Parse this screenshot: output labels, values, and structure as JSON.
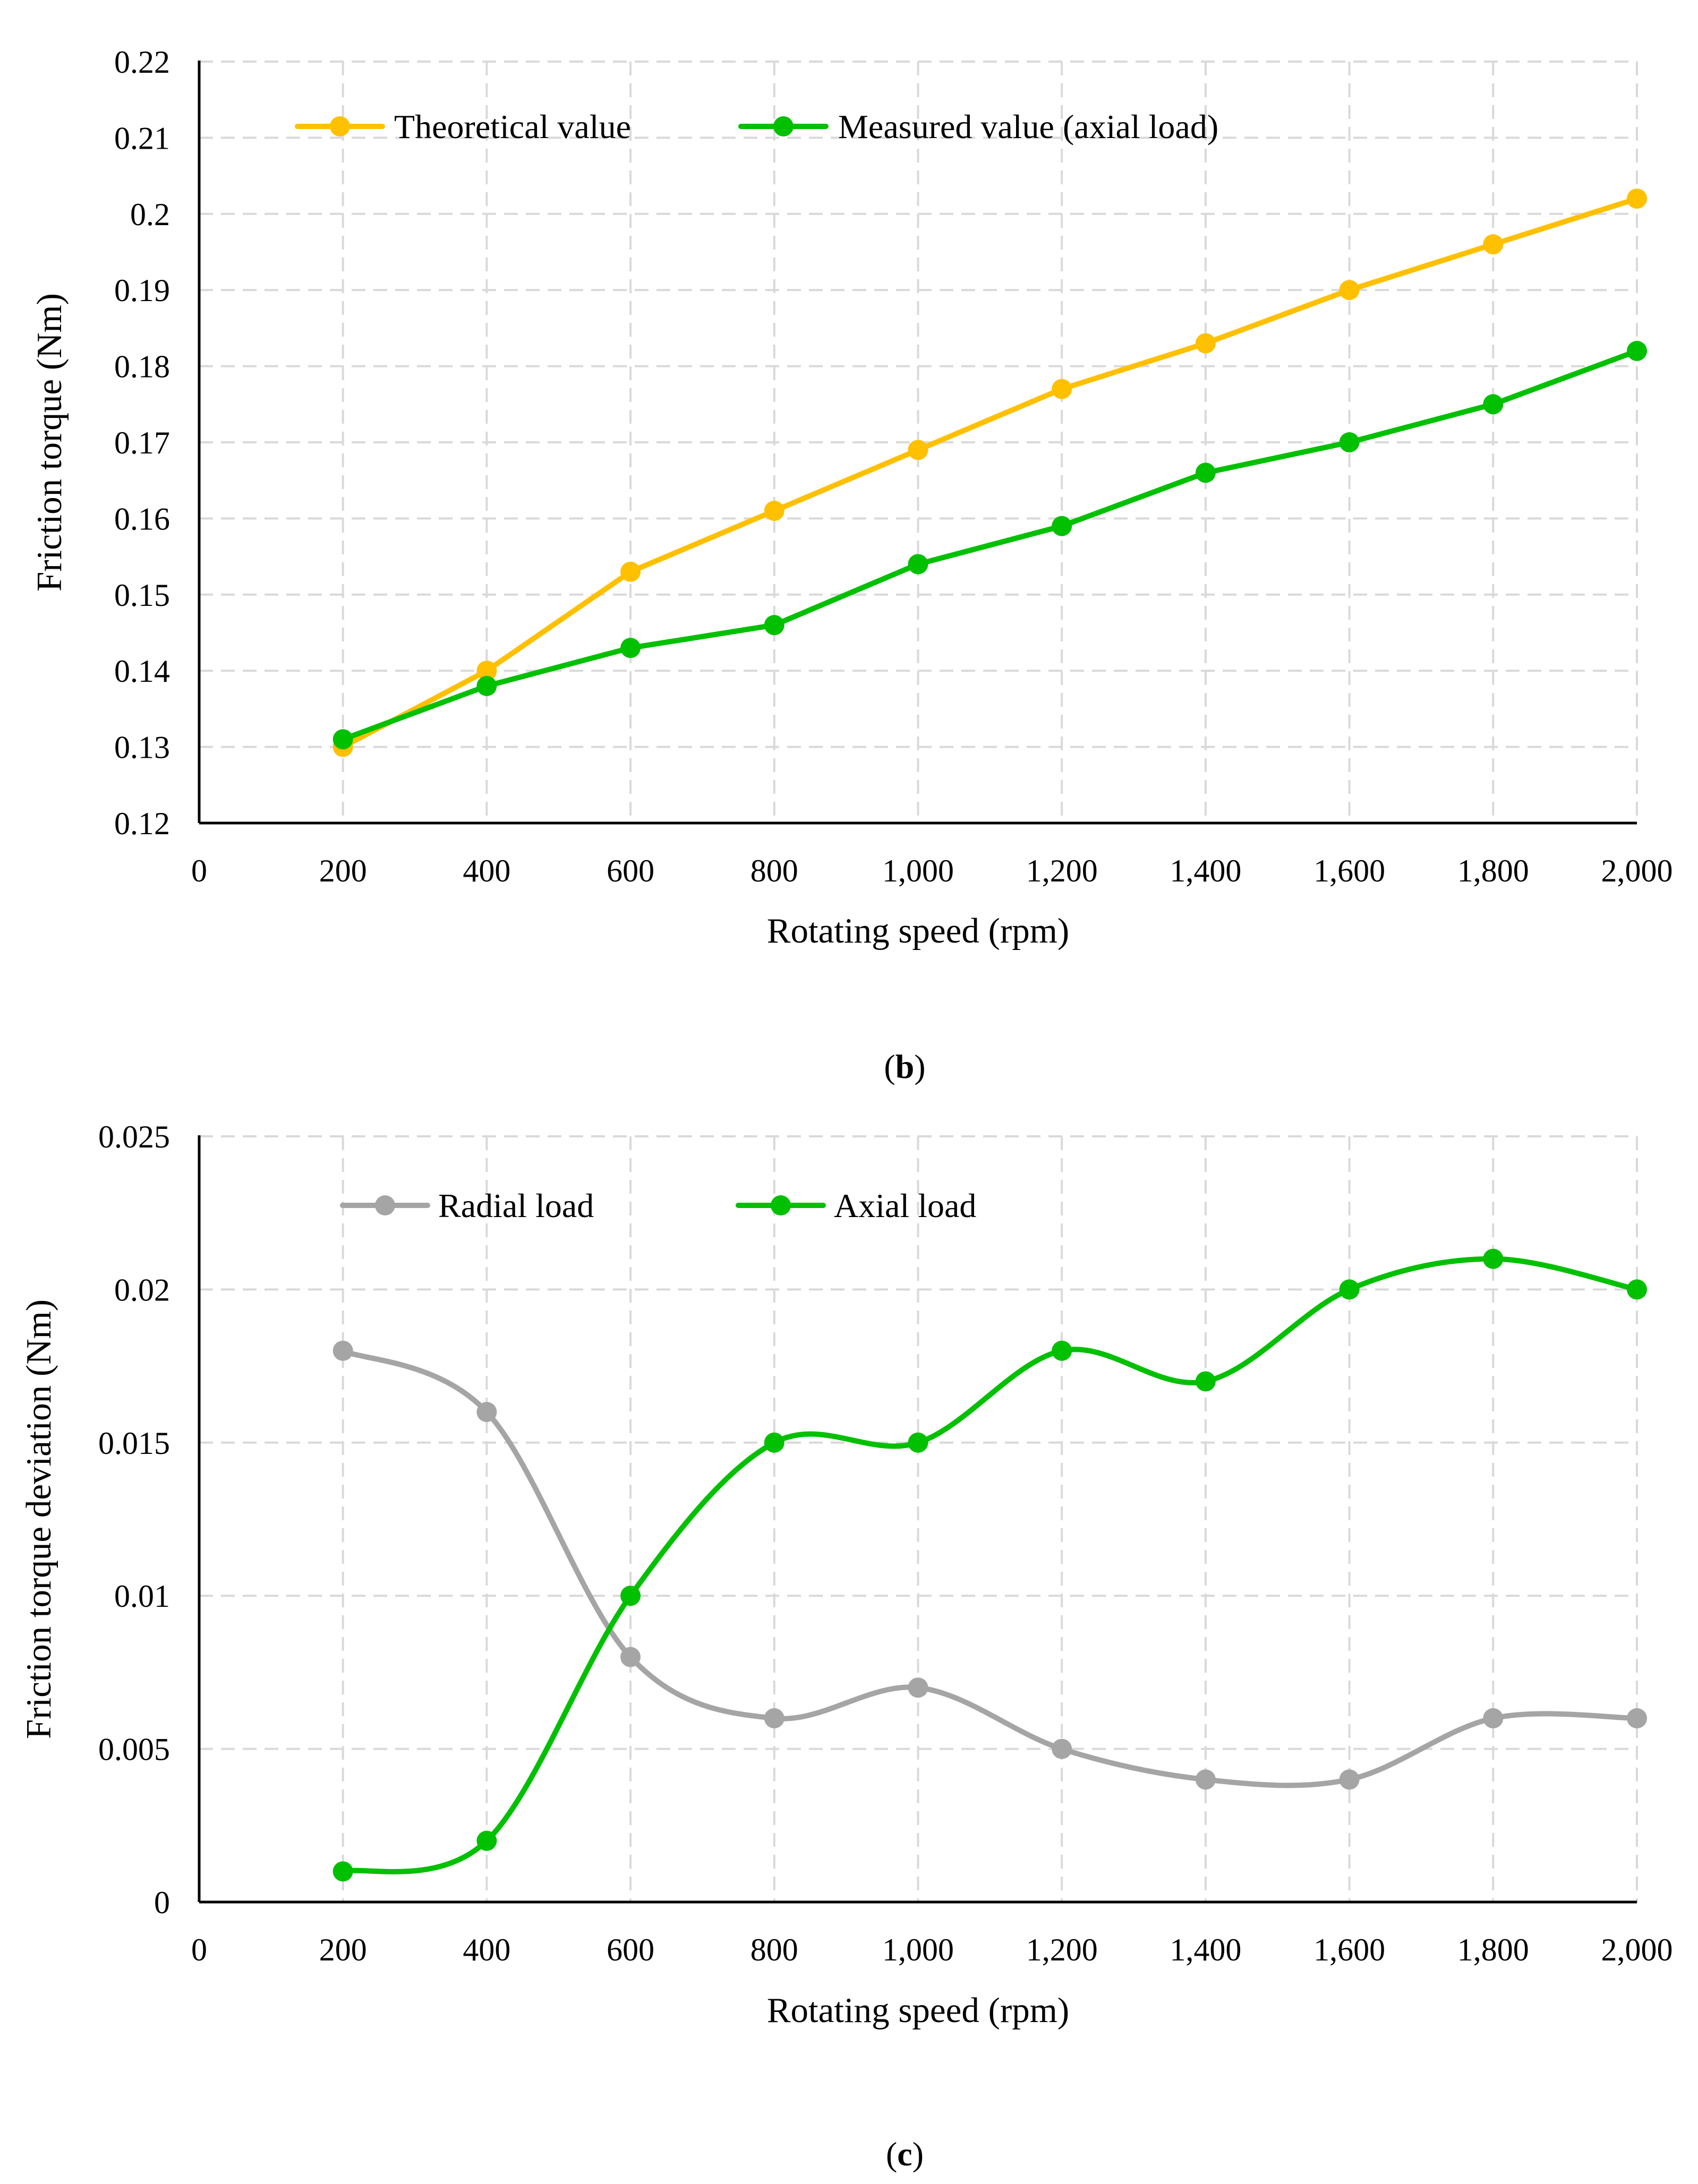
{
  "chart_data": [
    {
      "panel_label": "b",
      "type": "line",
      "xlabel": "Rotating speed (rpm)",
      "ylabel": "Friction torque (Nm)",
      "xlim": [
        0,
        2000
      ],
      "ylim": [
        0.12,
        0.22
      ],
      "x_ticks": [
        0,
        200,
        400,
        600,
        800,
        1000,
        1200,
        1400,
        1600,
        1800,
        2000
      ],
      "x_tick_labels": [
        "0",
        "200",
        "400",
        "600",
        "800",
        "1,000",
        "1,200",
        "1,400",
        "1,600",
        "1,800",
        "2,000"
      ],
      "y_ticks": [
        0.12,
        0.13,
        0.14,
        0.15,
        0.16,
        0.17,
        0.18,
        0.19,
        0.2,
        0.21,
        0.22
      ],
      "y_tick_labels": [
        "0.12",
        "0.13",
        "0.14",
        "0.15",
        "0.16",
        "0.17",
        "0.18",
        "0.19",
        "0.2",
        "0.21",
        "0.22"
      ],
      "grid": true,
      "legend_position": "top-left",
      "smooth": false,
      "x": [
        200,
        400,
        600,
        800,
        1000,
        1200,
        1400,
        1600,
        1800,
        2000
      ],
      "series": [
        {
          "name": "Theoretical value",
          "color": "#FFC000",
          "values": [
            0.13,
            0.14,
            0.153,
            0.161,
            0.169,
            0.177,
            0.183,
            0.19,
            0.196,
            0.202
          ]
        },
        {
          "name": "Measured value (axial load)",
          "color": "#00C000",
          "values": [
            0.131,
            0.138,
            0.143,
            0.146,
            0.154,
            0.159,
            0.166,
            0.17,
            0.175,
            0.182
          ]
        }
      ]
    },
    {
      "panel_label": "c",
      "type": "line",
      "xlabel": "Rotating speed (rpm)",
      "ylabel": "Friction torque deviation (Nm)",
      "xlim": [
        0,
        2000
      ],
      "ylim": [
        0,
        0.025
      ],
      "x_ticks": [
        0,
        200,
        400,
        600,
        800,
        1000,
        1200,
        1400,
        1600,
        1800,
        2000
      ],
      "x_tick_labels": [
        "0",
        "200",
        "400",
        "600",
        "800",
        "1,000",
        "1,200",
        "1,400",
        "1,600",
        "1,800",
        "2,000"
      ],
      "y_ticks": [
        0,
        0.005,
        0.01,
        0.015,
        0.02,
        0.025
      ],
      "y_tick_labels": [
        "0",
        "0.005",
        "0.01",
        "0.015",
        "0.02",
        "0.025"
      ],
      "grid": true,
      "legend_position": "top-left",
      "smooth": true,
      "x": [
        200,
        400,
        600,
        800,
        1000,
        1200,
        1400,
        1600,
        1800,
        2000
      ],
      "series": [
        {
          "name": "Radial load",
          "color": "#A5A5A5",
          "values": [
            0.018,
            0.016,
            0.008,
            0.006,
            0.007,
            0.005,
            0.004,
            0.004,
            0.006,
            0.006
          ]
        },
        {
          "name": "Axial load",
          "color": "#00C000",
          "values": [
            0.001,
            0.002,
            0.01,
            0.015,
            0.015,
            0.018,
            0.017,
            0.02,
            0.021,
            0.02
          ]
        }
      ]
    }
  ]
}
